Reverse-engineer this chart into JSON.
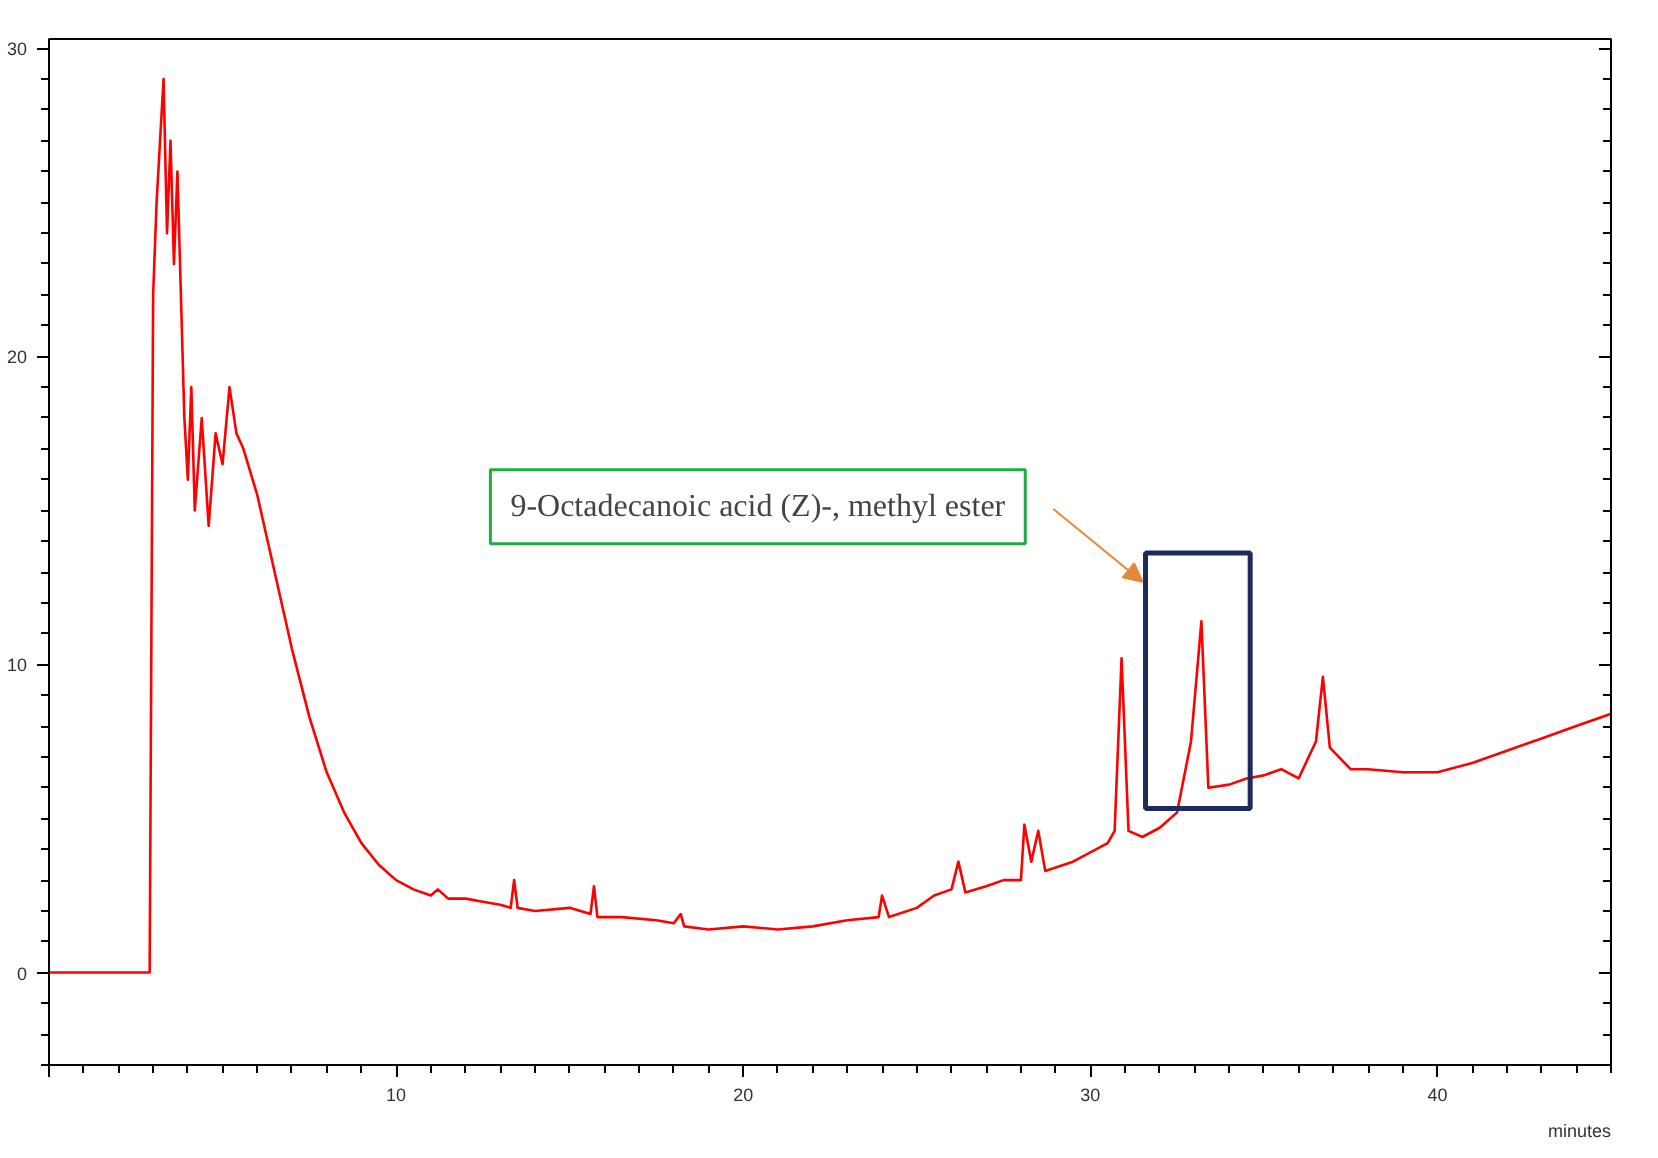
{
  "chart_data": {
    "type": "line",
    "xlabel": "minutes",
    "xlim": [
      0,
      45
    ],
    "ylim": [
      -3,
      30.3
    ],
    "xticks": [
      {
        "value": 0,
        "label": null
      },
      10,
      20,
      30,
      40
    ],
    "yticks": [
      0,
      10,
      20,
      30
    ],
    "grid": false,
    "marker": "none",
    "line_style": "solid",
    "annotations": [
      "9-Octadecanoic acid (Z)-, methyl ester"
    ],
    "series": [
      {
        "color": "#ff0000",
        "x": [
          0,
          2.9,
          3.0,
          3.1,
          3.3,
          3.4,
          3.5,
          3.6,
          3.7,
          3.8,
          3.9,
          4.0,
          4.1,
          4.2,
          4.4,
          4.6,
          4.8,
          5.0,
          5.2,
          5.4,
          5.6,
          6.0,
          6.5,
          7.0,
          7.5,
          8.0,
          8.5,
          9.0,
          9.5,
          10,
          10.5,
          11,
          11.2,
          11.5,
          12,
          12.5,
          13,
          13.3,
          13.4,
          13.5,
          14,
          15,
          15.6,
          15.7,
          15.8,
          16.5,
          17.5,
          18,
          18.2,
          18.3,
          19,
          20,
          21,
          22,
          23,
          23.9,
          24,
          24.2,
          25,
          25.5,
          26,
          26.2,
          26.4,
          27,
          27.5,
          28,
          28.1,
          28.3,
          28.5,
          28.7,
          29.5,
          30,
          30.5,
          30.7,
          30.9,
          31.1,
          31.5,
          32,
          32.5,
          32.9,
          33.2,
          33.4,
          34,
          34.5,
          35,
          35.5,
          36,
          36.5,
          36.7,
          36.9,
          37.5,
          38,
          39,
          40,
          41,
          42,
          43,
          44,
          45
        ],
        "values": [
          0,
          0,
          22,
          25,
          29,
          24,
          27,
          23,
          26,
          22,
          18,
          16,
          19,
          15,
          18,
          14.5,
          17.5,
          16.5,
          19,
          17.5,
          17,
          15.5,
          13,
          10.5,
          8.3,
          6.5,
          5.2,
          4.2,
          3.5,
          3.0,
          2.7,
          2.5,
          2.7,
          2.4,
          2.4,
          2.3,
          2.2,
          2.1,
          3.0,
          2.1,
          2.0,
          2.1,
          1.9,
          2.8,
          1.8,
          1.8,
          1.7,
          1.6,
          1.9,
          1.5,
          1.4,
          1.5,
          1.4,
          1.5,
          1.7,
          1.8,
          2.5,
          1.8,
          2.1,
          2.5,
          2.7,
          3.6,
          2.6,
          2.8,
          3.0,
          3.0,
          4.8,
          3.6,
          4.6,
          3.3,
          3.6,
          3.9,
          4.2,
          4.6,
          10.2,
          4.6,
          4.4,
          4.7,
          5.2,
          7.5,
          11.4,
          6.0,
          6.1,
          6.3,
          6.4,
          6.6,
          6.3,
          7.5,
          9.6,
          7.3,
          6.6,
          6.6,
          6.5,
          6.5,
          6.8,
          7.2,
          7.6,
          8.0,
          8.4
        ]
      }
    ]
  }
}
